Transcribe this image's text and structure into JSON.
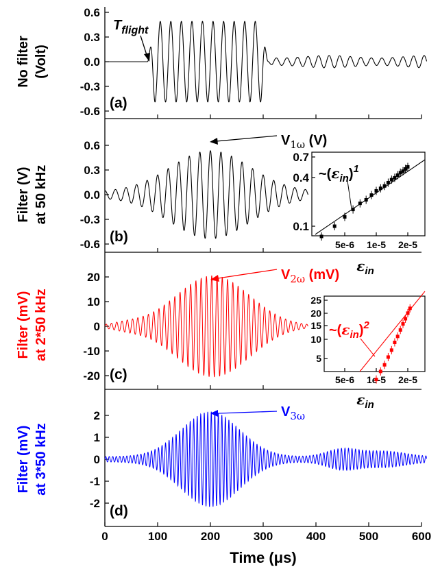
{
  "chart_data": [
    {
      "type": "line",
      "panel": "(a)",
      "ylabel": [
        "No filter",
        "(Volt)"
      ],
      "ylabel_color": "#000000",
      "yticks": [
        "0.6",
        "0.3",
        "0.0",
        "-0.3",
        "-0.6"
      ],
      "ylim": [
        -0.6,
        0.6
      ],
      "xlim": [
        0,
        600
      ],
      "line_color": "#000000",
      "annotation": {
        "main": "T",
        "sub": "flight"
      },
      "series": [
        {
          "signal": "no-filter",
          "x_start": 0,
          "x_end": 610,
          "onset_x": 80,
          "burst": [
            90,
            300
          ],
          "burst_amplitude": 0.49,
          "tail_amplitude": 0.06,
          "cycles_per_us": 0.05
        }
      ]
    },
    {
      "type": "line",
      "panel": "(b)",
      "ylabel": [
        "Filter (V)",
        "at 50 kHz"
      ],
      "ylabel_color": "#000000",
      "yticks": [
        "0.6",
        "0.3",
        "0.0",
        "-0.3",
        "-0.6"
      ],
      "ylim": [
        -0.6,
        0.6
      ],
      "xlim": [
        0,
        600
      ],
      "line_color": "#000000",
      "annotation": {
        "main": "V",
        "sub": "1ω",
        "suffix": " (V)"
      },
      "series": [
        {
          "signal": "1w",
          "x_start": 0,
          "x_end": 385,
          "center": 200,
          "peak_amplitude": 0.5,
          "cycles_per_us": 0.05
        }
      ],
      "inset": {
        "type": "scatter",
        "xlabel": "ε",
        "xlabel_sub": "in",
        "xticks": [
          "5e-6",
          "1e-5",
          "2e-5"
        ],
        "yticks": [
          "0.7",
          "0.4",
          "0.1"
        ],
        "fit_label": {
          "pre": "~(",
          "main": "ε",
          "sub": "in",
          "post": ")",
          "power": "1"
        },
        "x": [
          3e-06,
          4e-06,
          5e-06,
          6e-06,
          7e-06,
          8e-06,
          9e-06,
          1e-05,
          1.1e-05,
          1.2e-05,
          1.3e-05,
          1.4e-05,
          1.5e-05,
          1.6e-05,
          1.7e-05,
          1.8e-05,
          1.9e-05,
          2e-05
        ],
        "y": [
          0.075,
          0.1,
          0.13,
          0.16,
          0.19,
          0.21,
          0.24,
          0.27,
          0.29,
          0.31,
          0.34,
          0.37,
          0.39,
          0.42,
          0.45,
          0.47,
          0.5,
          0.53
        ]
      }
    },
    {
      "type": "line",
      "panel": "(c)",
      "ylabel": [
        "Filter (mV)",
        "at 2*50 kHz"
      ],
      "ylabel_color": "#ff0000",
      "yticks": [
        "20",
        "10",
        "0",
        "-10",
        "-20"
      ],
      "ylim": [
        -25,
        25
      ],
      "xlim": [
        0,
        600
      ],
      "line_color": "#ff0000",
      "annotation": {
        "main": "V",
        "sub": "2ω",
        "suffix": " (mV)"
      },
      "series": [
        {
          "signal": "2w",
          "x_start": 0,
          "x_end": 385,
          "center": 205,
          "peak_amplitude": 20.5,
          "cycles_per_us": 0.1
        }
      ],
      "inset": {
        "type": "scatter",
        "xlabel": "ε",
        "xlabel_sub": "in",
        "xticks": [
          "5e-6",
          "1e-5",
          "2e-5"
        ],
        "yticks": [
          "25",
          "20",
          "15",
          "10",
          "5"
        ],
        "fit_label": {
          "pre": "~(",
          "main": "ε",
          "sub": "in",
          "post": ")",
          "power": "2"
        },
        "x": [
          1e-05,
          1.1e-05,
          1.2e-05,
          1.3e-05,
          1.4e-05,
          1.5e-05,
          1.6e-05,
          1.7e-05,
          1.8e-05,
          1.9e-05,
          2e-05,
          2.1e-05
        ],
        "y": [
          2.8,
          3.5,
          4.2,
          5.2,
          6.3,
          7.8,
          9.2,
          11.0,
          13.0,
          15.0,
          17.5,
          20.0
        ]
      }
    },
    {
      "type": "line",
      "panel": "(d)",
      "ylabel": [
        "Filter (mV)",
        "at 3*50 kHz"
      ],
      "ylabel_color": "#0000ff",
      "yticks": [
        "2",
        "1",
        "0",
        "-1",
        "-2"
      ],
      "ylim": [
        -2.5,
        2.5
      ],
      "xlim": [
        0,
        600
      ],
      "line_color": "#0000ff",
      "annotation": {
        "main": "V",
        "sub": "3ω",
        "suffix": ""
      },
      "series": [
        {
          "signal": "3w",
          "x_start": 0,
          "x_end": 610,
          "center": 200,
          "peak_amplitude": 2.05,
          "cycles_per_us": 0.15
        }
      ],
      "xticks": [
        "0",
        "100",
        "200",
        "300",
        "400",
        "500",
        "600"
      ],
      "xlabel": "Time (μs)"
    }
  ]
}
